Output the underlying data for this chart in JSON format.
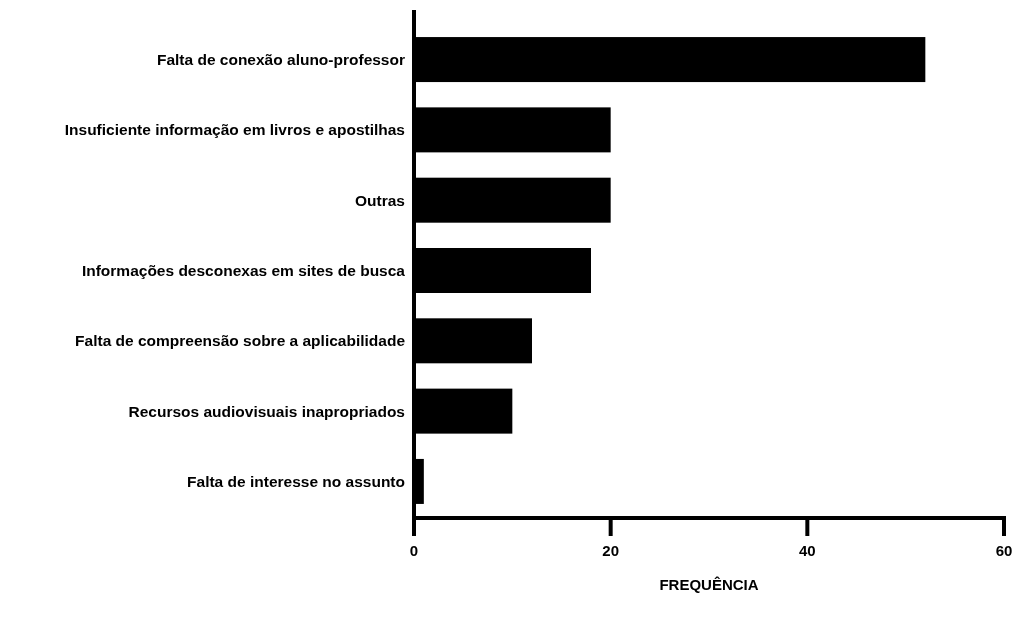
{
  "chart_data": {
    "type": "bar",
    "orientation": "horizontal",
    "xlabel": "FREQUÊNCIA",
    "categories": [
      "Falta de conexão aluno-professor",
      "Insuficiente informação em livros e apostilhas",
      "Outras",
      "Informações desconexas em sites de busca",
      "Falta de compreensão sobre a aplicabilidade",
      "Recursos audiovisuais inapropriados",
      "Falta de interesse no assunto"
    ],
    "values": [
      52,
      20,
      20,
      18,
      12,
      10,
      1
    ],
    "color": "#000000",
    "xlim": [
      0,
      60
    ],
    "xticks": [
      0,
      20,
      40,
      60
    ],
    "grid": false
  }
}
